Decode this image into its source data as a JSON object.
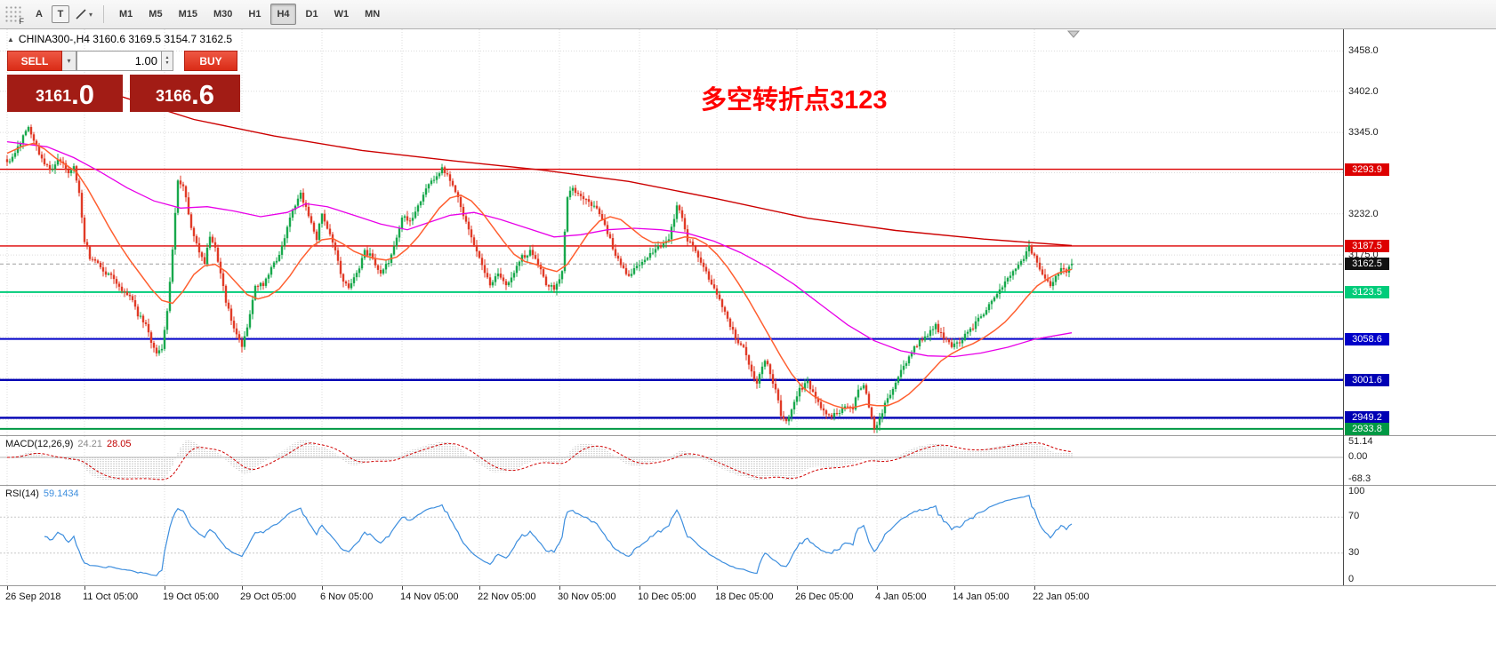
{
  "toolbar": {
    "handle_label": "F",
    "tool_a_label": "A",
    "tool_t_label": "T",
    "timeframes": [
      "M1",
      "M5",
      "M15",
      "M30",
      "H1",
      "H4",
      "D1",
      "W1",
      "MN"
    ],
    "active_timeframe": "H4"
  },
  "icons": {
    "dropdown_arrow": "▾",
    "spin_up": "▲",
    "spin_down": "▼",
    "collapse_up": "▲"
  },
  "symbol_header": {
    "text": "CHINA300-,H4  3160.6 3169.5 3154.7 3162.5"
  },
  "trade_panel": {
    "sell_label": "SELL",
    "buy_label": "BUY",
    "volume": "1.00",
    "bid_main": "3161",
    "bid_big": ".0",
    "ask_main": "3166",
    "ask_big": ".6"
  },
  "annotation": {
    "text": "多空转折点3123",
    "color": "#ff0000"
  },
  "macd_panel": {
    "label": "MACD(12,26,9)",
    "value_main": "24.21",
    "value_signal": "28.05",
    "axis_top": "51.14",
    "axis_zero": "0.00",
    "axis_bottom": "-68.3"
  },
  "rsi_panel": {
    "label": "RSI(14)",
    "value": "59.1434",
    "axis": [
      "100",
      "70",
      "30",
      "0"
    ]
  },
  "chart_data": {
    "type": "candlestick",
    "symbol": "CHINA300-",
    "timeframe": "H4",
    "title": "CHINA300- H4 candlestick chart with MACD(12,26,9) and RSI(14)",
    "ohlc_current": {
      "open": 3160.6,
      "high": 3169.5,
      "low": 3154.7,
      "close": 3162.5
    },
    "bars_total": 400,
    "y_range": [
      2925,
      3488
    ],
    "bull_color": "#18a84c",
    "bear_color": "#e03a26",
    "y_ticks": [
      {
        "price": 3458,
        "label": "3458.0"
      },
      {
        "price": 3402,
        "label": "3402.0"
      },
      {
        "price": 3345,
        "label": "3345.0"
      },
      {
        "price": 3232,
        "label": "3232.0"
      },
      {
        "price": 3175,
        "label": "3175.0"
      }
    ],
    "y_grid": [
      3458,
      3402,
      3345,
      3289,
      3232,
      3175,
      3118,
      3061,
      3004,
      2947
    ],
    "hlines": [
      {
        "price": 3293.9,
        "label": "3293.9",
        "color": "#dd0000",
        "width": 1.4,
        "dash": ""
      },
      {
        "price": 3187.5,
        "label": "3187.5",
        "color": "#dd0000",
        "width": 1.4,
        "dash": ""
      },
      {
        "price": 3162.5,
        "label": "3162.5",
        "color": "#111111",
        "line_color": "#a0a0a0",
        "width": 1,
        "dash": "4,3"
      },
      {
        "price": 3123.5,
        "label": "3123.5",
        "color": "#00cc7a",
        "width": 2,
        "dash": ""
      },
      {
        "price": 3058.6,
        "label": "3058.6",
        "color": "#0000c8",
        "width": 2,
        "dash": ""
      },
      {
        "price": 3001.6,
        "label": "3001.6",
        "color": "#0000b4",
        "width": 2.4,
        "dash": ""
      },
      {
        "price": 2949.2,
        "label": "2949.2",
        "color": "#0000b4",
        "width": 2.4,
        "dash": ""
      },
      {
        "price": 2933.8,
        "label": "2933.8",
        "color": "#009944",
        "width": 2,
        "dash": ""
      }
    ],
    "x_ticks": [
      [
        0,
        "26 Sep 2018"
      ],
      [
        29,
        "11 Oct 05:00"
      ],
      [
        59,
        "19 Oct 05:00"
      ],
      [
        88,
        "29 Oct 05:00"
      ],
      [
        118,
        "6 Nov 05:00"
      ],
      [
        148,
        "14 Nov 05:00"
      ],
      [
        177,
        "22 Nov 05:00"
      ],
      [
        207,
        "30 Nov 05:00"
      ],
      [
        237,
        "10 Dec 05:00"
      ],
      [
        266,
        "18 Dec 05:00"
      ],
      [
        296,
        "26 Dec 05:00"
      ],
      [
        326,
        "4 Jan 05:00"
      ],
      [
        355,
        "14 Jan 05:00"
      ],
      [
        385,
        "22 Jan 05:00"
      ]
    ],
    "price_path": [
      [
        0,
        3302
      ],
      [
        3,
        3318
      ],
      [
        6,
        3340
      ],
      [
        8,
        3352
      ],
      [
        10,
        3335
      ],
      [
        12,
        3312
      ],
      [
        15,
        3300
      ],
      [
        17,
        3292
      ],
      [
        19,
        3305
      ],
      [
        21,
        3300
      ],
      [
        23,
        3288
      ],
      [
        25,
        3295
      ],
      [
        27,
        3262
      ],
      [
        29,
        3196
      ],
      [
        31,
        3172
      ],
      [
        34,
        3162
      ],
      [
        37,
        3150
      ],
      [
        40,
        3142
      ],
      [
        43,
        3128
      ],
      [
        46,
        3118
      ],
      [
        49,
        3092
      ],
      [
        52,
        3078
      ],
      [
        54,
        3052
      ],
      [
        56,
        3038
      ],
      [
        58,
        3042
      ],
      [
        60,
        3095
      ],
      [
        62,
        3180
      ],
      [
        64,
        3280
      ],
      [
        66,
        3272
      ],
      [
        68,
        3232
      ],
      [
        70,
        3198
      ],
      [
        72,
        3178
      ],
      [
        74,
        3166
      ],
      [
        76,
        3198
      ],
      [
        78,
        3186
      ],
      [
        80,
        3150
      ],
      [
        82,
        3112
      ],
      [
        84,
        3085
      ],
      [
        86,
        3062
      ],
      [
        88,
        3048
      ],
      [
        90,
        3072
      ],
      [
        93,
        3135
      ],
      [
        96,
        3132
      ],
      [
        99,
        3158
      ],
      [
        102,
        3172
      ],
      [
        105,
        3212
      ],
      [
        108,
        3246
      ],
      [
        110,
        3258
      ],
      [
        112,
        3240
      ],
      [
        114,
        3222
      ],
      [
        116,
        3198
      ],
      [
        118,
        3232
      ],
      [
        120,
        3210
      ],
      [
        122,
        3192
      ],
      [
        124,
        3164
      ],
      [
        126,
        3140
      ],
      [
        128,
        3132
      ],
      [
        131,
        3148
      ],
      [
        134,
        3180
      ],
      [
        137,
        3172
      ],
      [
        140,
        3148
      ],
      [
        143,
        3166
      ],
      [
        146,
        3198
      ],
      [
        148,
        3228
      ],
      [
        151,
        3222
      ],
      [
        154,
        3245
      ],
      [
        157,
        3265
      ],
      [
        160,
        3282
      ],
      [
        163,
        3294
      ],
      [
        166,
        3280
      ],
      [
        169,
        3252
      ],
      [
        172,
        3222
      ],
      [
        175,
        3192
      ],
      [
        178,
        3162
      ],
      [
        181,
        3136
      ],
      [
        184,
        3146
      ],
      [
        187,
        3130
      ],
      [
        190,
        3152
      ],
      [
        193,
        3172
      ],
      [
        196,
        3180
      ],
      [
        199,
        3160
      ],
      [
        202,
        3136
      ],
      [
        205,
        3130
      ],
      [
        208,
        3150
      ],
      [
        210,
        3258
      ],
      [
        212,
        3268
      ],
      [
        215,
        3256
      ],
      [
        218,
        3246
      ],
      [
        221,
        3240
      ],
      [
        224,
        3216
      ],
      [
        227,
        3186
      ],
      [
        230,
        3160
      ],
      [
        233,
        3146
      ],
      [
        236,
        3158
      ],
      [
        239,
        3170
      ],
      [
        242,
        3180
      ],
      [
        245,
        3188
      ],
      [
        248,
        3198
      ],
      [
        251,
        3242
      ],
      [
        253,
        3228
      ],
      [
        255,
        3196
      ],
      [
        258,
        3178
      ],
      [
        261,
        3158
      ],
      [
        264,
        3136
      ],
      [
        267,
        3115
      ],
      [
        270,
        3088
      ],
      [
        273,
        3060
      ],
      [
        276,
        3045
      ],
      [
        279,
        3012
      ],
      [
        281,
        3000
      ],
      [
        284,
        3030
      ],
      [
        286,
        3012
      ],
      [
        288,
        2985
      ],
      [
        290,
        2955
      ],
      [
        292,
        2944
      ],
      [
        294,
        2958
      ],
      [
        297,
        2988
      ],
      [
        300,
        2998
      ],
      [
        303,
        2976
      ],
      [
        306,
        2960
      ],
      [
        309,
        2950
      ],
      [
        312,
        2958
      ],
      [
        315,
        2968
      ],
      [
        317,
        2960
      ],
      [
        319,
        2988
      ],
      [
        321,
        2996
      ],
      [
        323,
        2966
      ],
      [
        325,
        2934
      ],
      [
        327,
        2950
      ],
      [
        330,
        2976
      ],
      [
        333,
        3000
      ],
      [
        336,
        3020
      ],
      [
        339,
        3040
      ],
      [
        342,
        3055
      ],
      [
        345,
        3065
      ],
      [
        348,
        3076
      ],
      [
        351,
        3062
      ],
      [
        354,
        3046
      ],
      [
        357,
        3056
      ],
      [
        360,
        3066
      ],
      [
        363,
        3080
      ],
      [
        366,
        3094
      ],
      [
        369,
        3110
      ],
      [
        372,
        3126
      ],
      [
        375,
        3142
      ],
      [
        378,
        3158
      ],
      [
        381,
        3172
      ],
      [
        383,
        3186
      ],
      [
        385,
        3172
      ],
      [
        387,
        3156
      ],
      [
        389,
        3142
      ],
      [
        391,
        3132
      ],
      [
        393,
        3146
      ],
      [
        395,
        3156
      ],
      [
        397,
        3150
      ],
      [
        399,
        3162.5
      ]
    ],
    "ma_slow": {
      "color": "#cc0000",
      "path": [
        [
          40,
          3398
        ],
        [
          70,
          3363
        ],
        [
          100,
          3340
        ],
        [
          133,
          3320
        ],
        [
          166,
          3306
        ],
        [
          200,
          3293
        ],
        [
          233,
          3277
        ],
        [
          266,
          3253
        ],
        [
          300,
          3226
        ],
        [
          333,
          3209
        ],
        [
          366,
          3197
        ],
        [
          399,
          3188
        ]
      ]
    },
    "ma_mid": {
      "color": "#e800e8",
      "path": [
        [
          0,
          3332
        ],
        [
          15,
          3325
        ],
        [
          25,
          3310
        ],
        [
          35,
          3290
        ],
        [
          45,
          3268
        ],
        [
          55,
          3250
        ],
        [
          65,
          3240
        ],
        [
          75,
          3242
        ],
        [
          85,
          3236
        ],
        [
          95,
          3228
        ],
        [
          105,
          3234
        ],
        [
          112,
          3246
        ],
        [
          120,
          3242
        ],
        [
          130,
          3230
        ],
        [
          140,
          3218
        ],
        [
          150,
          3210
        ],
        [
          158,
          3220
        ],
        [
          166,
          3230
        ],
        [
          175,
          3234
        ],
        [
          185,
          3224
        ],
        [
          195,
          3212
        ],
        [
          205,
          3200
        ],
        [
          215,
          3203
        ],
        [
          225,
          3210
        ],
        [
          235,
          3212
        ],
        [
          245,
          3210
        ],
        [
          255,
          3205
        ],
        [
          265,
          3194
        ],
        [
          275,
          3178
        ],
        [
          285,
          3158
        ],
        [
          295,
          3134
        ],
        [
          305,
          3106
        ],
        [
          315,
          3078
        ],
        [
          325,
          3056
        ],
        [
          335,
          3042
        ],
        [
          345,
          3035
        ],
        [
          355,
          3034
        ],
        [
          365,
          3039
        ],
        [
          375,
          3047
        ],
        [
          385,
          3058
        ],
        [
          399,
          3067
        ]
      ]
    },
    "ma_fast": {
      "color": "#ff5f30",
      "path": [
        [
          0,
          3316
        ],
        [
          6,
          3326
        ],
        [
          10,
          3330
        ],
        [
          14,
          3322
        ],
        [
          18,
          3310
        ],
        [
          22,
          3300
        ],
        [
          26,
          3290
        ],
        [
          30,
          3268
        ],
        [
          34,
          3242
        ],
        [
          38,
          3215
        ],
        [
          42,
          3190
        ],
        [
          46,
          3168
        ],
        [
          50,
          3148
        ],
        [
          54,
          3128
        ],
        [
          58,
          3112
        ],
        [
          62,
          3108
        ],
        [
          66,
          3125
        ],
        [
          70,
          3148
        ],
        [
          74,
          3160
        ],
        [
          78,
          3162
        ],
        [
          82,
          3152
        ],
        [
          86,
          3136
        ],
        [
          90,
          3120
        ],
        [
          94,
          3114
        ],
        [
          98,
          3118
        ],
        [
          102,
          3128
        ],
        [
          106,
          3146
        ],
        [
          110,
          3168
        ],
        [
          114,
          3186
        ],
        [
          118,
          3196
        ],
        [
          122,
          3198
        ],
        [
          126,
          3190
        ],
        [
          130,
          3180
        ],
        [
          134,
          3174
        ],
        [
          138,
          3170
        ],
        [
          142,
          3168
        ],
        [
          146,
          3172
        ],
        [
          150,
          3184
        ],
        [
          154,
          3200
        ],
        [
          158,
          3220
        ],
        [
          162,
          3240
        ],
        [
          166,
          3254
        ],
        [
          170,
          3258
        ],
        [
          174,
          3250
        ],
        [
          178,
          3234
        ],
        [
          182,
          3214
        ],
        [
          186,
          3194
        ],
        [
          190,
          3176
        ],
        [
          194,
          3166
        ],
        [
          198,
          3162
        ],
        [
          202,
          3156
        ],
        [
          206,
          3152
        ],
        [
          210,
          3162
        ],
        [
          214,
          3184
        ],
        [
          218,
          3206
        ],
        [
          222,
          3222
        ],
        [
          226,
          3228
        ],
        [
          230,
          3224
        ],
        [
          234,
          3212
        ],
        [
          238,
          3200
        ],
        [
          242,
          3192
        ],
        [
          246,
          3192
        ],
        [
          250,
          3196
        ],
        [
          254,
          3200
        ],
        [
          258,
          3198
        ],
        [
          262,
          3190
        ],
        [
          266,
          3176
        ],
        [
          270,
          3158
        ],
        [
          274,
          3136
        ],
        [
          278,
          3112
        ],
        [
          282,
          3086
        ],
        [
          286,
          3060
        ],
        [
          290,
          3034
        ],
        [
          294,
          3010
        ],
        [
          298,
          2992
        ],
        [
          302,
          2980
        ],
        [
          306,
          2972
        ],
        [
          310,
          2966
        ],
        [
          314,
          2962
        ],
        [
          318,
          2964
        ],
        [
          322,
          2968
        ],
        [
          326,
          2966
        ],
        [
          330,
          2966
        ],
        [
          334,
          2972
        ],
        [
          338,
          2982
        ],
        [
          342,
          2996
        ],
        [
          346,
          3012
        ],
        [
          350,
          3028
        ],
        [
          354,
          3038
        ],
        [
          358,
          3046
        ],
        [
          362,
          3052
        ],
        [
          366,
          3060
        ],
        [
          370,
          3070
        ],
        [
          374,
          3082
        ],
        [
          378,
          3098
        ],
        [
          382,
          3116
        ],
        [
          386,
          3132
        ],
        [
          390,
          3142
        ],
        [
          394,
          3150
        ],
        [
          399,
          3155
        ]
      ]
    },
    "macd": {
      "fast": 12,
      "slow": 26,
      "signal": 9,
      "hist_color": "#b0b0b0",
      "signal_color": "#d00000",
      "range": [
        -68.3,
        51.14
      ]
    },
    "rsi": {
      "period": 14,
      "color": "#3d8ede",
      "levels": [
        70,
        30
      ],
      "current": 59.1434
    }
  }
}
